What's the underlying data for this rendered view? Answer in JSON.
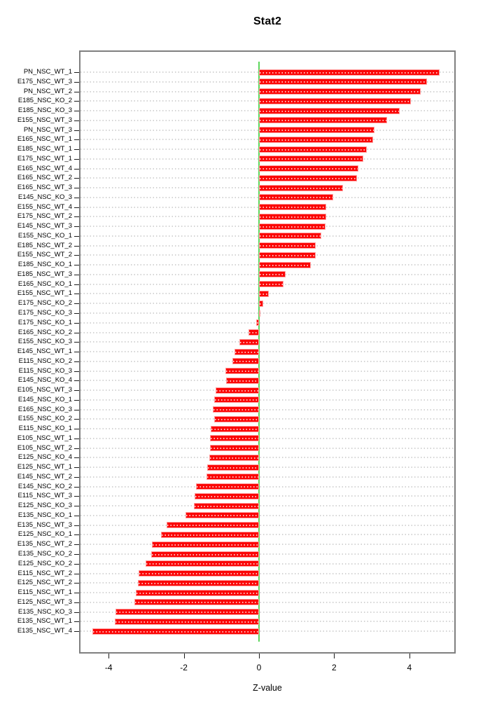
{
  "title": "Stat2",
  "x_axis": {
    "label": "Z-value",
    "ticks": [
      "-4",
      "-2",
      "0",
      "2",
      "4"
    ],
    "tick_values": [
      -4,
      -2,
      0,
      2,
      4
    ]
  },
  "colors": {
    "bar": "#fb0606",
    "bar_border": "#ff9e9e",
    "zero_line": "#5cd65c",
    "grid_dots": "#d4d4d4",
    "plot_border": "#7f7f7f",
    "text": "#000000",
    "background": "#ffffff"
  },
  "chart_data": {
    "type": "bar",
    "orientation": "horizontal",
    "title": "Stat2",
    "xlabel": "Z-value",
    "ylabel": "",
    "xlim": [
      -4.8,
      5.2
    ],
    "zero_reference_line": 0,
    "grid": "dotted horizontal line per category",
    "legend": "none",
    "categories_top_to_bottom": true,
    "categories": [
      "PN_NSC_WT_1",
      "E175_NSC_WT_3",
      "PN_NSC_WT_2",
      "E185_NSC_KO_2",
      "E185_NSC_KO_3",
      "E155_NSC_WT_3",
      "PN_NSC_WT_3",
      "E165_NSC_WT_1",
      "E185_NSC_WT_1",
      "E175_NSC_WT_1",
      "E165_NSC_WT_4",
      "E165_NSC_WT_2",
      "E165_NSC_WT_3",
      "E145_NSC_KO_3",
      "E155_NSC_WT_4",
      "E175_NSC_WT_2",
      "E145_NSC_WT_3",
      "E155_NSC_KO_1",
      "E185_NSC_WT_2",
      "E155_NSC_WT_2",
      "E185_NSC_KO_1",
      "E185_NSC_WT_3",
      "E165_NSC_KO_1",
      "E155_NSC_WT_1",
      "E175_NSC_KO_2",
      "E175_NSC_KO_3",
      "E175_NSC_KO_1",
      "E165_NSC_KO_2",
      "E155_NSC_KO_3",
      "E145_NSC_WT_1",
      "E115_NSC_KO_2",
      "E115_NSC_KO_3",
      "E145_NSC_KO_4",
      "E105_NSC_WT_3",
      "E145_NSC_KO_1",
      "E165_NSC_KO_3",
      "E155_NSC_KO_2",
      "E115_NSC_KO_1",
      "E105_NSC_WT_1",
      "E105_NSC_WT_2",
      "E125_NSC_KO_4",
      "E125_NSC_WT_1",
      "E145_NSC_WT_2",
      "E145_NSC_KO_2",
      "E115_NSC_WT_3",
      "E125_NSC_KO_3",
      "E135_NSC_KO_1",
      "E135_NSC_WT_3",
      "E125_NSC_KO_1",
      "E135_NSC_WT_2",
      "E135_NSC_KO_2",
      "E125_NSC_KO_2",
      "E115_NSC_WT_2",
      "E125_NSC_WT_2",
      "E115_NSC_WT_1",
      "E125_NSC_WT_3",
      "E135_NSC_KO_3",
      "E135_NSC_WT_1",
      "E135_NSC_WT_4"
    ],
    "values": [
      4.81,
      4.47,
      4.31,
      4.05,
      3.75,
      3.4,
      3.07,
      3.04,
      2.86,
      2.77,
      2.65,
      2.6,
      2.24,
      1.98,
      1.79,
      1.78,
      1.76,
      1.66,
      1.51,
      1.5,
      1.38,
      0.71,
      0.66,
      0.26,
      0.12,
      0.04,
      -0.08,
      -0.28,
      -0.52,
      -0.65,
      -0.71,
      -0.89,
      -0.88,
      -1.16,
      -1.19,
      -1.22,
      -1.2,
      -1.29,
      -1.3,
      -1.3,
      -1.32,
      -1.38,
      -1.39,
      -1.67,
      -1.71,
      -1.73,
      -1.96,
      -2.46,
      -2.6,
      -2.84,
      -2.87,
      -3.01,
      -3.21,
      -3.23,
      -3.27,
      -3.31,
      -3.81,
      -3.83,
      -4.43
    ]
  }
}
